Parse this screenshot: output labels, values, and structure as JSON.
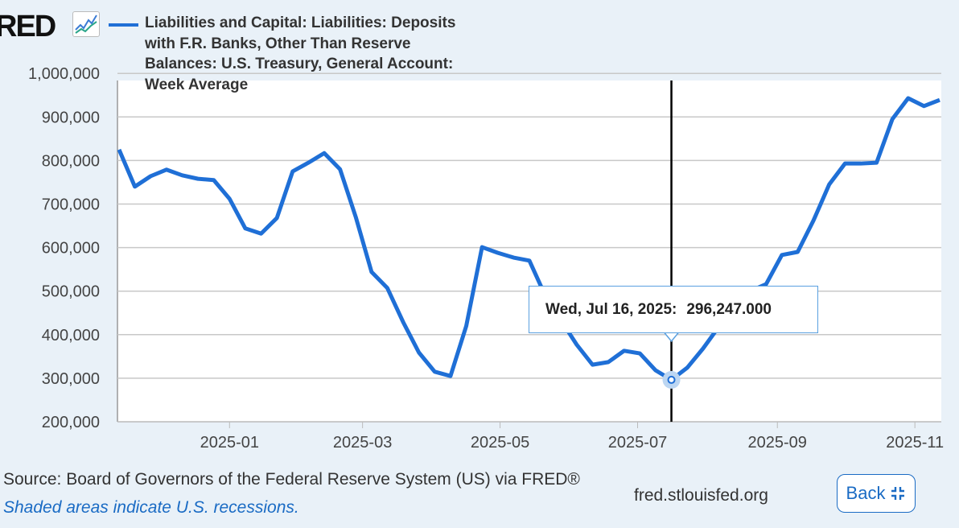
{
  "logo_text": "FRED",
  "back_label": "Back",
  "source": "Source: Board of Governors of the Federal Reserve System (US) via FRED®",
  "recession_note": "Shaded areas indicate U.S. recessions.",
  "site": "fred.stlouisfed.org",
  "tooltip": {
    "date": "Wed, Jul 16, 2025:",
    "value": "296,247.000"
  },
  "colors": {
    "line": "#1f6fd6",
    "background": "#e9f1f8",
    "grid": "#c8c8c8"
  },
  "chart_data": {
    "type": "line",
    "title": "",
    "xlabel": "",
    "ylabel": "",
    "legend": {
      "position": "top",
      "entries": [
        "Liabilities and Capital: Liabilities: Deposits with F.R. Banks, Other Than Reserve Balances: U.S. Treasury, General Account: Week Average"
      ]
    },
    "ylim": [
      200000,
      1000000
    ],
    "yticks": [
      "1,000,000",
      "900,000",
      "800,000",
      "700,000",
      "600,000",
      "500,000",
      "400,000",
      "300,000",
      "200,000"
    ],
    "ytick_values": [
      1000000,
      900000,
      800000,
      700000,
      600000,
      500000,
      400000,
      300000,
      200000
    ],
    "xticks": [
      "2025-01",
      "2025-03",
      "2025-05",
      "2025-07",
      "2025-09",
      "2025-11"
    ],
    "xtick_dates": [
      "2025-01-01",
      "2025-03-01",
      "2025-05-01",
      "2025-07-01",
      "2025-09-01",
      "2025-11-01"
    ],
    "xlim": [
      "2024-11-13",
      "2025-11-12"
    ],
    "grid": true,
    "crosshair_date": "2025-07-16",
    "series": [
      {
        "name": "Liabilities and Capital: Liabilities: Deposits with F.R. Banks, Other Than Reserve Balances: U.S. Treasury, General Account: Week Average",
        "start": "2024-11-13",
        "interval_days": 7,
        "values": [
          825000,
          740000,
          764000,
          779000,
          766000,
          758000,
          755000,
          712000,
          644000,
          632000,
          668000,
          775000,
          795000,
          817000,
          780000,
          670000,
          544000,
          507000,
          429000,
          359000,
          315000,
          305000,
          420000,
          601000,
          588000,
          577000,
          570000,
          490000,
          433000,
          377000,
          331000,
          337000,
          363000,
          357000,
          318000,
          296247,
          324000,
          368000,
          418000,
          470000,
          500000,
          516000,
          583000,
          590000,
          662000,
          745000,
          793000,
          793000,
          795000,
          895000,
          943000,
          925000,
          939000
        ]
      }
    ]
  }
}
